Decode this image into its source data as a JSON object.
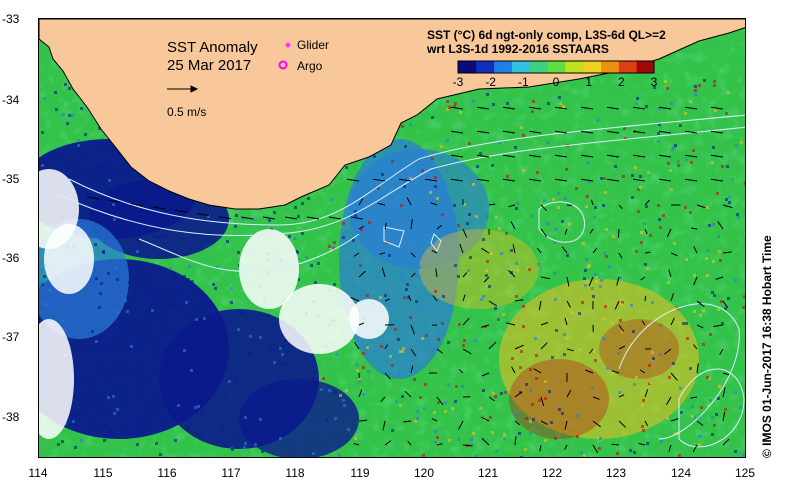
{
  "map": {
    "title": "SST Anomaly",
    "date": "25 Mar 2017",
    "velocity_scale_label": "0.5 m/s",
    "legend": {
      "glider_label": "Glider",
      "argo_label": "Argo",
      "glider_color": "#ff33ff",
      "argo_color": "#ff00ff"
    },
    "colorbar": {
      "title_line1": "SST (°C) 6d ngt-only comp, L3S-6d QL>=2",
      "title_line2": "wrt L3S-1d 1992-2016 SSTAARS",
      "ticks": [
        "-3",
        "-2",
        "-1",
        "0",
        "1",
        "2",
        "3"
      ]
    },
    "credit": "© IMOS 01-Jun-2017 16:38 Hobart Time",
    "lat_labels": [
      "-33",
      "-34",
      "-35",
      "-36",
      "-37",
      "-38"
    ],
    "lon_labels": [
      "114",
      "115",
      "116",
      "117",
      "118",
      "119",
      "120",
      "121",
      "122",
      "123",
      "124",
      "125"
    ],
    "colors": {
      "land": "#f9c89a",
      "no_data": "#ffffff",
      "anom_cold": "#0a1a8c",
      "anom_cool": "#2a7cd8",
      "anom_neutral": "#33c24a",
      "anom_warm": "#f0c020",
      "anom_hot": "#c01010"
    }
  }
}
